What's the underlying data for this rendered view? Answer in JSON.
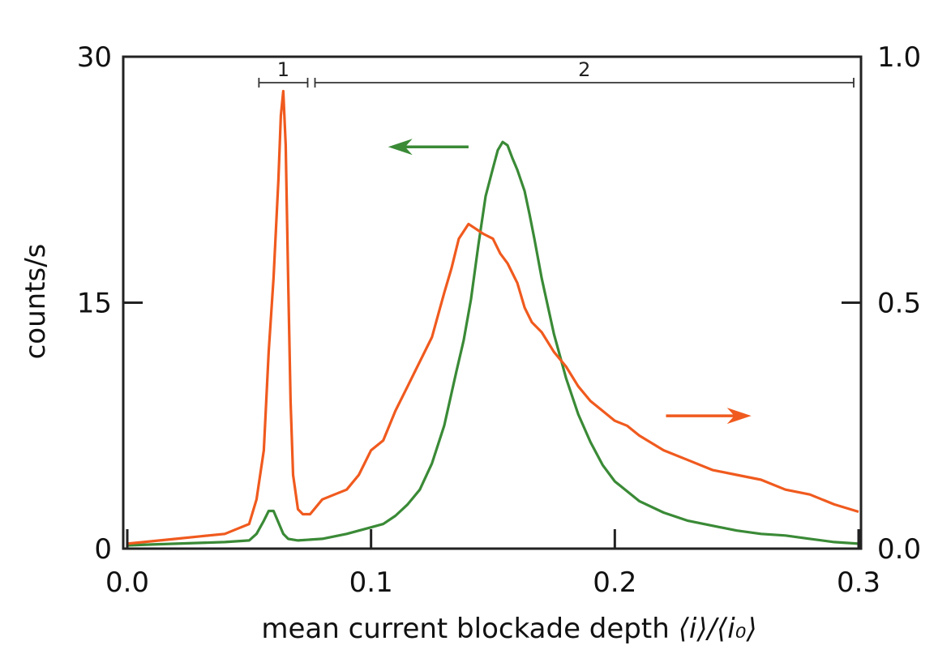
{
  "chart_data": {
    "type": "line",
    "title": "",
    "xlabel_main": "mean current blockade depth ",
    "xlabel_math": "⟨i⟩/⟨i₀⟩",
    "ylabel_left": "counts/s",
    "ylabel_right": "",
    "xlim": [
      0.0,
      0.3
    ],
    "ylim_left": [
      0,
      30
    ],
    "ylim_right": [
      0.0,
      1.0
    ],
    "x_ticks": [
      "0.0",
      "0.1",
      "0.2",
      "0.3"
    ],
    "y_left_ticks": [
      "0",
      "15",
      "30"
    ],
    "y_right_ticks": [
      "0.0",
      "0.5",
      "1.0"
    ],
    "grid": false,
    "annotations": [
      {
        "label": "1",
        "x_start": 0.054,
        "x_end": 0.074
      },
      {
        "label": "2",
        "x_start": 0.077,
        "x_end": 0.298
      }
    ],
    "series": [
      {
        "axis": "left",
        "color": "#3a8a36",
        "x": [
          0.0,
          0.01,
          0.02,
          0.03,
          0.04,
          0.045,
          0.05,
          0.053,
          0.056,
          0.058,
          0.06,
          0.062,
          0.064,
          0.066,
          0.07,
          0.075,
          0.08,
          0.09,
          0.1,
          0.105,
          0.11,
          0.115,
          0.12,
          0.125,
          0.13,
          0.135,
          0.138,
          0.141,
          0.144,
          0.147,
          0.15,
          0.152,
          0.154,
          0.156,
          0.158,
          0.16,
          0.163,
          0.165,
          0.167,
          0.17,
          0.175,
          0.18,
          0.185,
          0.19,
          0.195,
          0.2,
          0.21,
          0.22,
          0.23,
          0.24,
          0.25,
          0.26,
          0.27,
          0.28,
          0.29,
          0.3
        ],
        "y": [
          0.2,
          0.25,
          0.3,
          0.35,
          0.4,
          0.45,
          0.5,
          0.9,
          1.7,
          2.3,
          2.3,
          1.6,
          0.9,
          0.6,
          0.5,
          0.55,
          0.6,
          0.9,
          1.3,
          1.5,
          2.0,
          2.7,
          3.6,
          5.2,
          7.5,
          10.8,
          12.7,
          15.2,
          18.5,
          21.5,
          23.2,
          24.3,
          24.8,
          24.6,
          23.8,
          23.1,
          21.8,
          20.4,
          18.9,
          16.5,
          13.1,
          10.4,
          8.2,
          6.5,
          5.1,
          4.1,
          2.9,
          2.2,
          1.7,
          1.4,
          1.1,
          0.9,
          0.8,
          0.6,
          0.4,
          0.3
        ]
      },
      {
        "axis": "right",
        "color": "#f05a1e",
        "x": [
          0.0,
          0.01,
          0.02,
          0.03,
          0.04,
          0.045,
          0.05,
          0.053,
          0.056,
          0.058,
          0.06,
          0.062,
          0.063,
          0.064,
          0.065,
          0.066,
          0.067,
          0.068,
          0.07,
          0.072,
          0.075,
          0.08,
          0.085,
          0.09,
          0.095,
          0.1,
          0.105,
          0.11,
          0.115,
          0.12,
          0.125,
          0.13,
          0.133,
          0.136,
          0.14,
          0.143,
          0.146,
          0.15,
          0.153,
          0.156,
          0.16,
          0.163,
          0.166,
          0.17,
          0.175,
          0.18,
          0.185,
          0.19,
          0.195,
          0.2,
          0.205,
          0.21,
          0.22,
          0.23,
          0.24,
          0.25,
          0.26,
          0.27,
          0.28,
          0.29,
          0.3
        ],
        "y": [
          0.01,
          0.015,
          0.02,
          0.025,
          0.03,
          0.04,
          0.05,
          0.1,
          0.2,
          0.4,
          0.55,
          0.75,
          0.88,
          0.93,
          0.82,
          0.55,
          0.3,
          0.15,
          0.08,
          0.07,
          0.07,
          0.1,
          0.11,
          0.12,
          0.15,
          0.2,
          0.22,
          0.28,
          0.33,
          0.38,
          0.43,
          0.52,
          0.57,
          0.63,
          0.66,
          0.65,
          0.64,
          0.63,
          0.6,
          0.58,
          0.54,
          0.49,
          0.46,
          0.44,
          0.4,
          0.37,
          0.33,
          0.3,
          0.28,
          0.26,
          0.25,
          0.23,
          0.2,
          0.18,
          0.16,
          0.15,
          0.14,
          0.12,
          0.11,
          0.09,
          0.075
        ]
      }
    ],
    "arrows": [
      {
        "color": "#3a8a36",
        "direction": "left",
        "x_from": 0.14,
        "x_to": 0.107,
        "y_left": 24.5
      },
      {
        "color": "#f05a1e",
        "direction": "right",
        "x_from": 0.221,
        "x_to": 0.256,
        "y_left": 8.1
      }
    ]
  }
}
